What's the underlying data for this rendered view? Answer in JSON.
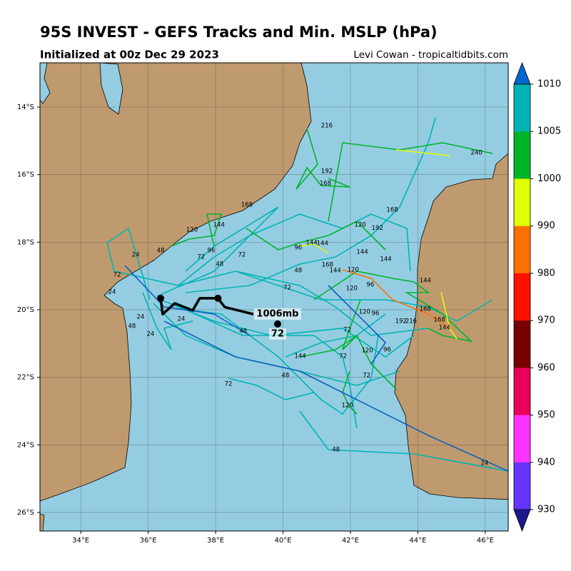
{
  "header": {
    "title": "95S INVEST - GEFS Tracks and Min. MSLP (hPa)",
    "subtitle": "Initialized at 00z Dec 29 2023",
    "credit": "Levi Cowan - tropicaltidbits.com"
  },
  "map": {
    "xlim": [
      32.79,
      46.68
    ],
    "ylim": [
      -26.55,
      -12.69
    ],
    "xticks": [
      {
        "value": 34,
        "label": "34°E"
      },
      {
        "value": 36,
        "label": "36°E"
      },
      {
        "value": 38,
        "label": "38°E"
      },
      {
        "value": 40,
        "label": "40°E"
      },
      {
        "value": 42,
        "label": "42°E"
      },
      {
        "value": 44,
        "label": "44°E"
      },
      {
        "value": 46,
        "label": "46°E"
      }
    ],
    "yticks": [
      {
        "value": -14,
        "label": "14°S"
      },
      {
        "value": -16,
        "label": "16°S"
      },
      {
        "value": -18,
        "label": "18°S"
      },
      {
        "value": -20,
        "label": "20°S"
      },
      {
        "value": -22,
        "label": "22°S"
      },
      {
        "value": -24,
        "label": "24°S"
      },
      {
        "value": -26,
        "label": "26°S"
      }
    ],
    "grid": true,
    "mean_track": {
      "color": "#000000",
      "lon": [
        36.37,
        36.43,
        36.79,
        37.32,
        37.53,
        38.07,
        38.27,
        39.12
      ],
      "lat": [
        -19.66,
        -20.13,
        -19.81,
        -20.02,
        -19.66,
        -19.66,
        -19.92,
        -20.13
      ]
    },
    "mean_points": {
      "lon": [
        36.37,
        38.07,
        39.84
      ],
      "lat": [
        -19.66,
        -19.66,
        -20.42
      ]
    },
    "mean_label": "1006mb",
    "mean_hour": "72",
    "hour_labels": [
      {
        "text": "216",
        "lon": 41.3,
        "lat": -14.55
      },
      {
        "text": "240",
        "lon": 45.74,
        "lat": -15.35
      },
      {
        "text": "192",
        "lon": 41.3,
        "lat": -15.9
      },
      {
        "text": "168",
        "lon": 41.26,
        "lat": -16.26
      },
      {
        "text": "168",
        "lon": 38.93,
        "lat": -16.89
      },
      {
        "text": "168",
        "lon": 43.24,
        "lat": -17.04
      },
      {
        "text": "144",
        "lon": 38.1,
        "lat": -17.49
      },
      {
        "text": "120",
        "lon": 37.3,
        "lat": -17.63
      },
      {
        "text": "120",
        "lon": 42.29,
        "lat": -17.49
      },
      {
        "text": "192",
        "lon": 42.8,
        "lat": -17.58
      },
      {
        "text": "144",
        "lon": 40.85,
        "lat": -18.01
      },
      {
        "text": "144",
        "lon": 41.17,
        "lat": -18.04
      },
      {
        "text": "144",
        "lon": 42.35,
        "lat": -18.29
      },
      {
        "text": "144",
        "lon": 43.05,
        "lat": -18.5
      },
      {
        "text": "96",
        "lon": 40.45,
        "lat": -18.16
      },
      {
        "text": "96",
        "lon": 37.87,
        "lat": -18.25
      },
      {
        "text": "72",
        "lon": 38.78,
        "lat": -18.37
      },
      {
        "text": "72",
        "lon": 37.57,
        "lat": -18.44
      },
      {
        "text": "168",
        "lon": 41.32,
        "lat": -18.67
      },
      {
        "text": "144",
        "lon": 41.55,
        "lat": -18.84
      },
      {
        "text": "120",
        "lon": 42.08,
        "lat": -18.82
      },
      {
        "text": "48",
        "lon": 40.45,
        "lat": -18.84
      },
      {
        "text": "48",
        "lon": 36.37,
        "lat": -18.25
      },
      {
        "text": "24",
        "lon": 35.63,
        "lat": -18.37
      },
      {
        "text": "72",
        "lon": 35.08,
        "lat": -18.96
      },
      {
        "text": "144",
        "lon": 44.22,
        "lat": -19.13
      },
      {
        "text": "96",
        "lon": 42.59,
        "lat": -19.26
      },
      {
        "text": "120",
        "lon": 42.04,
        "lat": -19.37
      },
      {
        "text": "72",
        "lon": 40.13,
        "lat": -19.35
      },
      {
        "text": "168",
        "lon": 44.22,
        "lat": -19.98
      },
      {
        "text": "168",
        "lon": 44.64,
        "lat": -20.3
      },
      {
        "text": "144",
        "lon": 44.79,
        "lat": -20.53
      },
      {
        "text": "192",
        "lon": 43.5,
        "lat": -20.34
      },
      {
        "text": "216",
        "lon": 43.8,
        "lat": -20.34
      },
      {
        "text": "120",
        "lon": 42.42,
        "lat": -20.06
      },
      {
        "text": "96",
        "lon": 42.74,
        "lat": -20.11
      },
      {
        "text": "72",
        "lon": 41.91,
        "lat": -20.59
      },
      {
        "text": "120",
        "lon": 42.5,
        "lat": -21.2
      },
      {
        "text": "96",
        "lon": 43.09,
        "lat": -21.18
      },
      {
        "text": "144",
        "lon": 40.51,
        "lat": -21.37
      },
      {
        "text": "72",
        "lon": 41.78,
        "lat": -21.37
      },
      {
        "text": "72",
        "lon": 42.48,
        "lat": -21.94
      },
      {
        "text": "48",
        "lon": 40.07,
        "lat": -21.94
      },
      {
        "text": "72",
        "lon": 38.38,
        "lat": -22.2
      },
      {
        "text": "120",
        "lon": 41.91,
        "lat": -22.83
      },
      {
        "text": "48",
        "lon": 41.57,
        "lat": -24.14
      },
      {
        "text": "24",
        "lon": 45.98,
        "lat": -24.54
      },
      {
        "text": "24",
        "lon": 34.93,
        "lat": -19.47
      },
      {
        "text": "24",
        "lon": 35.77,
        "lat": -20.21
      },
      {
        "text": "24",
        "lon": 36.07,
        "lat": -20.72
      },
      {
        "text": "24",
        "lon": 36.98,
        "lat": -20.28
      },
      {
        "text": "48",
        "lon": 35.52,
        "lat": -20.49
      },
      {
        "text": "48",
        "lon": 38.82,
        "lat": -20.63
      },
      {
        "text": "48",
        "lon": 38.12,
        "lat": -18.65
      }
    ]
  },
  "colorbar": {
    "ticks": [
      1010,
      1005,
      1000,
      990,
      980,
      970,
      960,
      950,
      940,
      930
    ],
    "colors": [
      "#00b4b4",
      "#00b42a",
      "#e0ff00",
      "#ff7000",
      "#ff1000",
      "#780000",
      "#e8005a",
      "#ff33ff",
      "#6633ff"
    ],
    "over_color": "#0066cc",
    "under_color": "#1a1a8c"
  }
}
